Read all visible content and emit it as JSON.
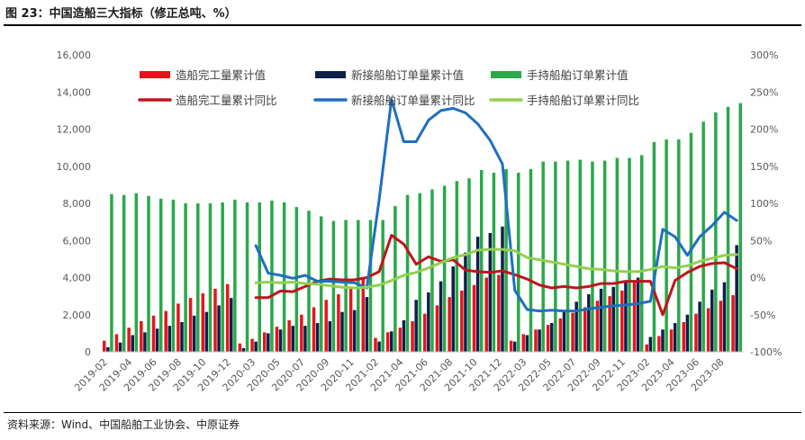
{
  "header": {
    "title": "图 23：中国造船三大指标（修正总吨、%）",
    "source": "资料来源：Wind、中国船舶工业协会、中原证券"
  },
  "colors": {
    "completion": "#e8141c",
    "new_orders": "#0f1f4a",
    "holding": "#2aa84a",
    "completion_yoy": "#c0141c",
    "new_orders_yoy": "#1f6fc0",
    "holding_yoy": "#92d050"
  },
  "chart_data": {
    "type": "bar",
    "x_tick_labels": [
      "2019-02",
      "2019-04",
      "2019-06",
      "2019-08",
      "2019-10",
      "2019-12",
      "2020-03",
      "2020-05",
      "2020-07",
      "2020-09",
      "2020-11",
      "2021-02",
      "2021-04",
      "2021-06",
      "2021-08",
      "2021-10",
      "2021-12",
      "2022-03",
      "2022-05",
      "2022-07",
      "2022-09",
      "2022-11",
      "2023-02",
      "2023-04",
      "2023-06",
      "2023-08"
    ],
    "categories": [
      "2019-02",
      "2019-03",
      "2019-04",
      "2019-05",
      "2019-06",
      "2019-07",
      "2019-08",
      "2019-09",
      "2019-10",
      "2019-11",
      "2019-12",
      "2020-02",
      "2020-03",
      "2020-04",
      "2020-05",
      "2020-06",
      "2020-07",
      "2020-08",
      "2020-09",
      "2020-10",
      "2020-11",
      "2020-12",
      "2021-02",
      "2021-03",
      "2021-04",
      "2021-05",
      "2021-06",
      "2021-07",
      "2021-08",
      "2021-09",
      "2021-10",
      "2021-11",
      "2021-12",
      "2022-02",
      "2022-03",
      "2022-04",
      "2022-05",
      "2022-06",
      "2022-07",
      "2022-08",
      "2022-09",
      "2022-10",
      "2022-11",
      "2022-12",
      "2023-02",
      "2023-03",
      "2023-04",
      "2023-05",
      "2023-06",
      "2023-07",
      "2023-08",
      "2023-09"
    ],
    "ylim_left": [
      0,
      16000
    ],
    "yticks_left": [
      "0",
      "2,000",
      "4,000",
      "6,000",
      "8,000",
      "10,000",
      "12,000",
      "14,000",
      "16,000"
    ],
    "ylim_right": [
      -100,
      300
    ],
    "yticks_right": [
      "-100%",
      "-50%",
      "0%",
      "50%",
      "100%",
      "150%",
      "200%",
      "250%",
      "300%"
    ],
    "grid": false,
    "legend_position": "top-left",
    "bar_series": [
      {
        "name": "造船完工量累计值",
        "values": [
          600,
          950,
          1300,
          1650,
          1950,
          2200,
          2600,
          2900,
          3150,
          3400,
          3650,
          450,
          700,
          1050,
          1350,
          1700,
          2000,
          2400,
          2800,
          3100,
          3400,
          3900,
          750,
          1050,
          1300,
          1650,
          2050,
          2500,
          2950,
          3300,
          3600,
          4000,
          4150,
          600,
          950,
          1200,
          1450,
          1800,
          2100,
          2400,
          2750,
          3000,
          3300,
          3800,
          400,
          850,
          1200,
          1600,
          2050,
          2350,
          2750,
          3050
        ]
      },
      {
        "name": "新接船舶订单量累计值",
        "values": [
          250,
          500,
          900,
          1050,
          1250,
          1400,
          1600,
          1950,
          2150,
          2500,
          2900,
          200,
          550,
          1000,
          1200,
          1400,
          1400,
          1550,
          1650,
          2150,
          2250,
          2950,
          550,
          1100,
          1700,
          2800,
          3200,
          3800,
          4600,
          5350,
          6200,
          6400,
          6750,
          550,
          900,
          1200,
          1550,
          2150,
          2700,
          3100,
          3400,
          3500,
          3850,
          4000,
          800,
          1200,
          1550,
          2000,
          2700,
          3350,
          3750,
          5750
        ]
      },
      {
        "name": "手持船舶订单累计值",
        "values": [
          8500,
          8450,
          8550,
          8400,
          8250,
          8200,
          8000,
          8000,
          8000,
          8050,
          8200,
          8050,
          8050,
          8150,
          8050,
          7800,
          7600,
          7300,
          7050,
          7100,
          7100,
          7100,
          7100,
          7850,
          8450,
          8550,
          8750,
          8950,
          9200,
          9350,
          9800,
          9650,
          9850,
          9650,
          9850,
          10250,
          10250,
          10300,
          10350,
          10250,
          10300,
          10450,
          10450,
          10600,
          11300,
          11450,
          11450,
          11800,
          12400,
          12900,
          13200,
          13400
        ]
      }
    ],
    "line_series": [
      {
        "name": "造船完工量累计同比",
        "values": [
          null,
          null,
          null,
          null,
          null,
          null,
          null,
          null,
          null,
          null,
          null,
          null,
          -27,
          -27,
          -18,
          -19,
          -12,
          -5,
          -2,
          -3,
          -3,
          0,
          8,
          57,
          45,
          18,
          28,
          22,
          24,
          10,
          8,
          7,
          9,
          4,
          -2,
          -10,
          -14,
          -12,
          -14,
          -12,
          -8,
          -8,
          -5,
          -5,
          -5,
          -50,
          -4,
          7,
          15,
          19,
          20,
          12
        ]
      },
      {
        "name": "新接船舶订单量累计同比",
        "values": [
          null,
          null,
          null,
          null,
          null,
          null,
          null,
          null,
          null,
          null,
          null,
          null,
          43,
          6,
          3,
          -1,
          3,
          -5,
          -5,
          -6,
          -7,
          -14,
          105,
          240,
          183,
          183,
          212,
          225,
          228,
          222,
          207,
          185,
          153,
          -17,
          -43,
          -45,
          -44,
          -45,
          -45,
          -42,
          -40,
          -38,
          -37,
          -35,
          -32,
          65,
          55,
          30,
          55,
          70,
          88,
          77
        ]
      },
      {
        "name": "手持船舶订单累计同比",
        "values": [
          null,
          null,
          null,
          null,
          null,
          null,
          null,
          null,
          null,
          null,
          null,
          null,
          -7,
          -6,
          -7,
          -6,
          -8,
          -9,
          -11,
          -13,
          -14,
          -13,
          -10,
          -4,
          3,
          7,
          13,
          20,
          27,
          31,
          37,
          38,
          38,
          36,
          27,
          24,
          21,
          18,
          15,
          12,
          11,
          9,
          8,
          8,
          11,
          15,
          13,
          16,
          22,
          26,
          30,
          31
        ]
      }
    ]
  }
}
